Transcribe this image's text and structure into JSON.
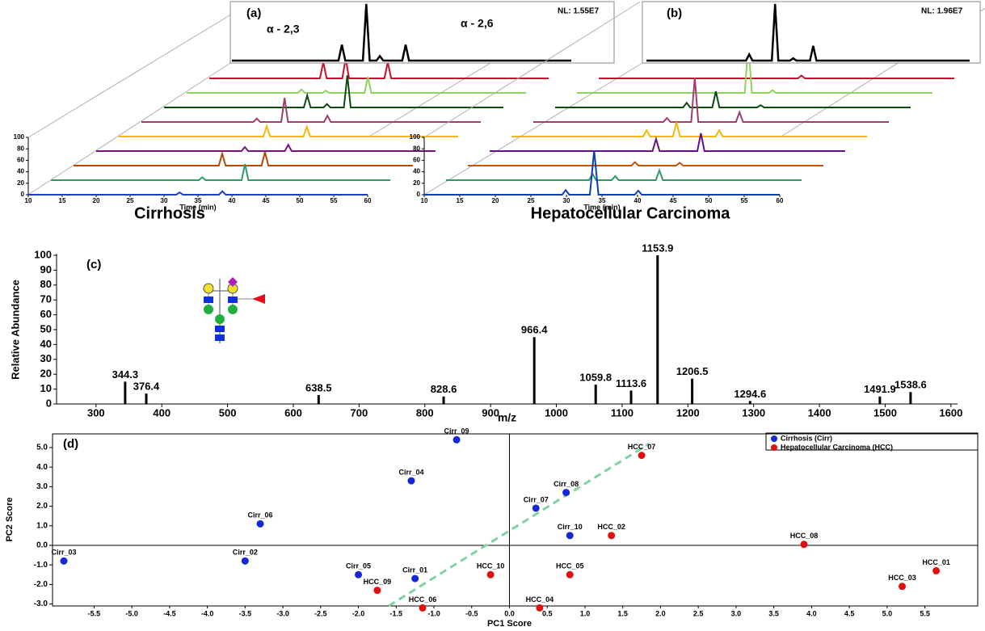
{
  "chart_data": [
    {
      "type": "waterfall",
      "panel_label": "(a)",
      "title": "Cirrhosis",
      "xlabel": "Time (min)",
      "xlim": [
        10,
        60
      ],
      "xticks": [
        10,
        15,
        20,
        25,
        30,
        35,
        40,
        45,
        50,
        55,
        60
      ],
      "ylim": [
        0,
        100
      ],
      "yticks": [
        0,
        20,
        40,
        60,
        80,
        100
      ],
      "inset": {
        "note": "NL: 1.55E7",
        "annotations": [
          "α - 2,3",
          "α - 2,6"
        ],
        "color": "#000000",
        "x": [
          10,
          25.7,
          26.2,
          26.7,
          29.3,
          29.8,
          30.3,
          31.3,
          31.8,
          32.3,
          35.1,
          35.6,
          36.1,
          60
        ],
        "values": [
          0,
          0,
          28,
          0,
          0,
          100,
          0,
          0,
          8,
          0,
          0,
          28,
          0,
          0
        ]
      },
      "series": [
        {
          "color": "#1a3fc0",
          "x": [
            10,
            31.8,
            32.3,
            32.8,
            38.1,
            38.6,
            39.1,
            60
          ],
          "values": [
            0,
            0,
            4,
            0,
            0,
            6,
            0,
            0
          ]
        },
        {
          "color": "#2e9a6c",
          "x": [
            10,
            31.8,
            32.3,
            32.8,
            38.1,
            38.6,
            39.1,
            60
          ],
          "values": [
            0,
            0,
            5,
            0,
            0,
            28,
            0,
            0
          ]
        },
        {
          "color": "#b04a0a",
          "x": [
            10,
            31.4,
            31.9,
            32.4,
            37.7,
            38.2,
            38.7,
            60
          ],
          "values": [
            0,
            0,
            21,
            0,
            0,
            24,
            0,
            0
          ]
        },
        {
          "color": "#7a1282",
          "x": [
            10,
            31.4,
            31.9,
            32.4,
            37.8,
            38.3,
            38.8,
            60
          ],
          "values": [
            0,
            0,
            7,
            0,
            0,
            11,
            0,
            0
          ]
        },
        {
          "color": "#f5b70a",
          "x": [
            10,
            31.3,
            31.8,
            32.3,
            37.2,
            37.7,
            38.2,
            60
          ],
          "values": [
            0,
            0,
            18,
            0,
            0,
            17,
            0,
            0
          ]
        },
        {
          "color": "#a03c6e",
          "x": [
            10,
            26.5,
            27,
            27.5,
            30.6,
            31.1,
            31.6,
            36.9,
            37.4,
            37.9,
            60
          ],
          "values": [
            0,
            0,
            6,
            0,
            0,
            42,
            0,
            0,
            11,
            0,
            0
          ]
        },
        {
          "color": "#0c4a10",
          "x": [
            10,
            30.6,
            31.1,
            31.6,
            33.5,
            34,
            34.5,
            36.5,
            37,
            37.5,
            60
          ],
          "values": [
            0,
            0,
            21,
            0,
            0,
            6,
            0,
            0,
            56,
            0,
            0
          ]
        },
        {
          "color": "#8ed35a",
          "x": [
            10,
            26.4,
            26.9,
            27.4,
            30,
            30.5,
            31,
            36.2,
            36.7,
            37.2,
            60
          ],
          "values": [
            0,
            0,
            6,
            0,
            0,
            4,
            0,
            0,
            28,
            0,
            0
          ]
        },
        {
          "color": "#c8102e",
          "x": [
            10,
            26.3,
            26.8,
            27.3,
            29.6,
            30.1,
            30.6,
            35.8,
            36.3,
            36.8,
            60
          ],
          "values": [
            0,
            0,
            28,
            0,
            0,
            35,
            0,
            0,
            28,
            0,
            0
          ]
        }
      ]
    },
    {
      "type": "waterfall",
      "panel_label": "(b)",
      "title": "Hepatocellular Carcinoma",
      "xlabel": "Time (min)",
      "xlim": [
        10,
        60
      ],
      "xticks": [
        10,
        15,
        20,
        25,
        30,
        35,
        40,
        45,
        50,
        55,
        60
      ],
      "ylim": [
        0,
        100
      ],
      "yticks": [
        0,
        20,
        40,
        60,
        80,
        100
      ],
      "inset": {
        "note": "NL: 1.96E7",
        "color": "#000000",
        "x": [
          10,
          25.4,
          25.9,
          26.4,
          29.4,
          29.9,
          30.4,
          32.2,
          32.7,
          33.2,
          35.3,
          35.8,
          36.3,
          60
        ],
        "values": [
          0,
          0,
          11,
          0,
          0,
          100,
          0,
          0,
          4,
          0,
          0,
          26,
          0,
          0
        ]
      },
      "series": [
        {
          "color": "#0b3fb0",
          "x": [
            10,
            29.4,
            29.9,
            30.4,
            33.3,
            33.9,
            34.5,
            39.6,
            40.1,
            40.6,
            60
          ],
          "values": [
            0,
            0,
            8,
            0,
            0,
            77,
            0,
            0,
            7,
            0,
            0
          ]
        },
        {
          "color": "#2e9a6c",
          "x": [
            10,
            30.1,
            30.6,
            31.1,
            33.3,
            33.8,
            34.3,
            39.5,
            40,
            40.5,
            60
          ],
          "values": [
            0,
            0,
            11,
            0,
            0,
            7,
            0,
            0,
            17,
            0,
            0
          ]
        },
        {
          "color": "#c0550c",
          "x": [
            10,
            33,
            33.5,
            34,
            39.3,
            39.8,
            40.3,
            60
          ],
          "values": [
            0,
            0,
            6,
            0,
            0,
            5,
            0,
            0
          ]
        },
        {
          "color": "#6a0f80",
          "x": [
            10,
            32.9,
            33.4,
            33.9,
            39.2,
            39.7,
            40.2,
            60
          ],
          "values": [
            0,
            0,
            21,
            0,
            0,
            31,
            0,
            0
          ]
        },
        {
          "color": "#f5b70a",
          "x": [
            10,
            28.5,
            29,
            29.5,
            32.7,
            33.2,
            33.7,
            38.7,
            39.2,
            39.7,
            60
          ],
          "values": [
            0,
            0,
            11,
            0,
            0,
            25,
            0,
            0,
            11,
            0,
            0
          ]
        },
        {
          "color": "#a03c6e",
          "x": [
            10,
            28.3,
            28.8,
            29.3,
            32.2,
            32.7,
            33.2,
            38.5,
            39,
            39.5,
            60
          ],
          "values": [
            0,
            0,
            7,
            0,
            0,
            77,
            0,
            0,
            17,
            0,
            0
          ]
        },
        {
          "color": "#0c4a10",
          "x": [
            10,
            28,
            28.5,
            29,
            32.1,
            32.6,
            33.1,
            38.4,
            38.9,
            39.4,
            60
          ],
          "values": [
            0,
            0,
            8,
            0,
            0,
            28,
            0,
            0,
            4,
            0,
            0
          ]
        },
        {
          "color": "#8ed35a",
          "x": [
            10,
            33.6,
            34.1,
            34.6,
            37,
            37.5,
            38,
            60
          ],
          "values": [
            0,
            0,
            85,
            0,
            0,
            5,
            0,
            0
          ]
        },
        {
          "color": "#c8102e",
          "x": [
            10,
            38,
            38.5,
            39,
            60
          ],
          "values": [
            0,
            0,
            5,
            0,
            0
          ]
        }
      ]
    },
    {
      "type": "stem",
      "panel_label": "(c)",
      "xlabel": "m/z",
      "ylabel": "Relative Abundance",
      "color": "#000000",
      "x": [
        344.3,
        376.4,
        638.5,
        828.6,
        966.4,
        1059.8,
        1113.6,
        1153.9,
        1206.5,
        1294.6,
        1491.9,
        1538.6
      ],
      "values": [
        15,
        7,
        6,
        5,
        45,
        13,
        9,
        100,
        17,
        2,
        5,
        8
      ],
      "xlim": [
        240,
        1610
      ],
      "xticks": [
        300,
        400,
        500,
        600,
        700,
        800,
        900,
        1000,
        1100,
        1200,
        1300,
        1400,
        1500,
        1600
      ],
      "ylim": [
        0,
        100
      ],
      "yticks": [
        0,
        10,
        20,
        30,
        40,
        50,
        60,
        70,
        80,
        90,
        100
      ]
    },
    {
      "type": "scatter",
      "panel_label": "(d)",
      "xlabel": "PC1 Score",
      "ylabel": "PC2 Score",
      "legend": "top-right",
      "xlim": [
        -6.05,
        6.2
      ],
      "xticks": [
        -5.5,
        {
          "value": -5,
          "label": "-5.0"
        },
        -4.5,
        {
          "value": -4,
          "label": "-4.0"
        },
        -3.5,
        {
          "value": -3,
          "label": "-3.0"
        },
        -2.5,
        {
          "value": -2,
          "label": "-2.0"
        },
        -1.5,
        {
          "value": -1,
          "label": "-1.0"
        },
        -0.5,
        {
          "value": 0,
          "label": "0.0"
        },
        0.5,
        {
          "value": 1,
          "label": "1.0"
        },
        1.5,
        {
          "value": 2,
          "label": "2.0"
        },
        2.5,
        {
          "value": 3,
          "label": "3.0"
        },
        3.5,
        {
          "value": 4,
          "label": "4.0"
        },
        4.5,
        {
          "value": 5,
          "label": "5.0"
        },
        5.5
      ],
      "ylim": [
        -3.1,
        5.7
      ],
      "yticks": [
        {
          "value": 5,
          "label": "5.0"
        },
        {
          "value": 4,
          "label": "4.0"
        },
        {
          "value": 3,
          "label": "3.0"
        },
        {
          "value": 2,
          "label": "2.0"
        },
        {
          "value": 1,
          "label": "1.0"
        },
        {
          "value": 0,
          "label": "0.0"
        },
        {
          "value": -1,
          "label": "-1.0"
        },
        {
          "value": -2,
          "label": "-2.0"
        },
        {
          "value": -3,
          "label": "-3.0"
        }
      ],
      "boundary": {
        "color": "#7fd3a0",
        "x": [
          -1.6,
          1.85
        ],
        "y": [
          -3.1,
          5.2
        ]
      },
      "series": [
        {
          "name": "Cirrhosis (Cirr)",
          "color": "#1428d8",
          "labels": [
            "Cirr_09",
            "Cirr_04",
            "Cirr_06",
            "Cirr_08",
            "Cirr_07",
            "Cirr_10",
            "Cirr_03",
            "Cirr_02",
            "Cirr_05",
            "Cirr_01"
          ],
          "x": [
            -0.7,
            -1.3,
            -3.3,
            0.75,
            0.35,
            0.8,
            -5.9,
            -3.5,
            -2.0,
            -1.25
          ],
          "values": [
            5.4,
            3.3,
            1.1,
            2.7,
            1.9,
            0.5,
            -0.8,
            -0.8,
            -1.5,
            -1.7
          ]
        },
        {
          "name": "Hepatocellular Carcinoma (HCC)",
          "color": "#e01010",
          "labels": [
            "HCC_07",
            "HCC_02",
            "HCC_08",
            "HCC_10",
            "HCC_05",
            "HCC_09",
            "HCC_06",
            "HCC_04",
            "HCC_03",
            "HCC_01"
          ],
          "x": [
            1.75,
            1.35,
            3.9,
            -0.25,
            0.8,
            -1.75,
            -1.15,
            0.4,
            5.2,
            5.65
          ],
          "values": [
            4.6,
            0.5,
            0.05,
            -1.5,
            -1.5,
            -2.3,
            -3.2,
            -3.2,
            -2.1,
            -1.3
          ]
        }
      ]
    }
  ]
}
